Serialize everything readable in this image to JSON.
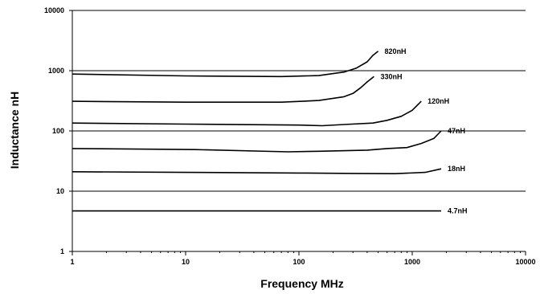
{
  "chart_data": {
    "type": "line",
    "title": "",
    "xlabel": "Frequency MHz",
    "ylabel": "Inductance nH",
    "x_scale": "log",
    "y_scale": "log",
    "xlim": [
      1,
      10000
    ],
    "ylim": [
      1,
      10000
    ],
    "x_ticks": [
      "1",
      "10",
      "100",
      "1000",
      "10000"
    ],
    "y_ticks": [
      "1",
      "10",
      "100",
      "1000",
      "10000"
    ],
    "grid": "horizontal-major",
    "legend": "none",
    "line_color": "#000000",
    "series": [
      {
        "name": "820nH",
        "x": [
          1,
          10,
          70,
          150,
          250,
          320,
          400,
          450,
          500
        ],
        "y": [
          880,
          820,
          800,
          830,
          950,
          1100,
          1400,
          1800,
          2100
        ]
      },
      {
        "name": "330nH",
        "x": [
          1,
          10,
          70,
          150,
          250,
          300,
          350,
          400,
          460
        ],
        "y": [
          310,
          300,
          300,
          320,
          370,
          420,
          520,
          650,
          800
        ]
      },
      {
        "name": "120nH",
        "x": [
          1,
          10,
          100,
          160,
          250,
          450,
          600,
          800,
          1000,
          1200
        ],
        "y": [
          135,
          130,
          125,
          122,
          128,
          135,
          150,
          175,
          220,
          310
        ]
      },
      {
        "name": "47nH",
        "x": [
          1,
          12,
          80,
          150,
          400,
          600,
          900,
          1200,
          1550,
          1800
        ],
        "y": [
          51,
          49,
          45,
          46,
          48,
          51,
          53,
          62,
          75,
          100
        ]
      },
      {
        "name": "18nH",
        "x": [
          1,
          10,
          100,
          300,
          700,
          1300,
          1800
        ],
        "y": [
          21,
          20.5,
          20,
          19.7,
          19.5,
          20.5,
          23.5
        ]
      },
      {
        "name": "4.7nH",
        "x": [
          1,
          10,
          100,
          1000,
          1800
        ],
        "y": [
          4.7,
          4.7,
          4.7,
          4.7,
          4.7
        ]
      }
    ]
  }
}
